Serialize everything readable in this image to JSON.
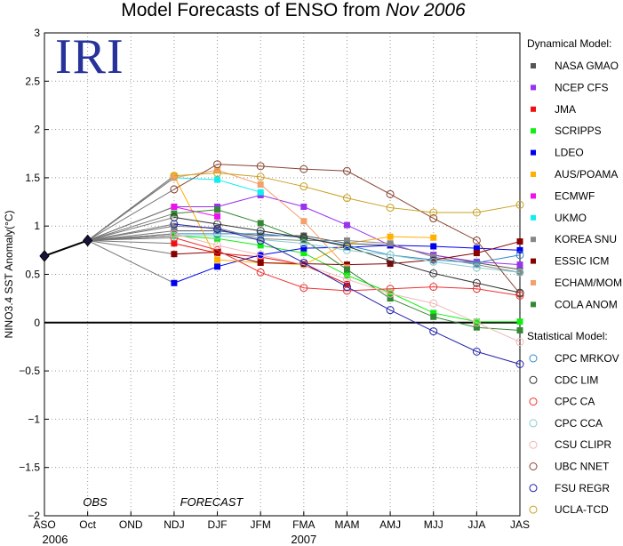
{
  "title_prefix": "Model Forecasts of ENSO from ",
  "title_date": "Nov 2006",
  "logo": "IRI",
  "labels": {
    "obs": "OBS",
    "forecast": "FORECAST",
    "year1": "2006",
    "year2": "2007"
  },
  "chart_data": {
    "type": "line",
    "title": "Model Forecasts of ENSO from Nov 2006",
    "ylabel": "NINO3.4 SST Anomaly(°C)",
    "xlabel": "",
    "categories": [
      "ASO",
      "Oct",
      "OND",
      "NDJ",
      "DJF",
      "JFM",
      "FMA",
      "MAM",
      "AMJ",
      "MJJ",
      "JJA",
      "JAS"
    ],
    "ylim": [
      -2,
      3
    ],
    "yticks": [
      "3",
      "2.5",
      "2",
      "1.5",
      "1",
      "0.5",
      "0",
      "−0.5",
      "−1",
      "−1.5",
      "−2"
    ],
    "grid": "dotted",
    "legend_position": "right",
    "observed": {
      "x": [
        "ASO",
        "Oct"
      ],
      "values": [
        0.69,
        0.85
      ]
    },
    "forecast_start": "Oct",
    "legend_headers": {
      "dynamical": "Dynamical Model:",
      "statistical": "Statistical Model:"
    },
    "series": [
      {
        "name": "NASA GMAO",
        "group": "dynamical",
        "marker": "square",
        "color": "#555555",
        "values": [
          null,
          null,
          null,
          0.95,
          0.95,
          0.9,
          0.9,
          0.82,
          0.8,
          0.7,
          0.62,
          0.55
        ]
      },
      {
        "name": "NCEP CFS",
        "group": "dynamical",
        "marker": "square",
        "color": "#9933ee",
        "values": [
          null,
          null,
          null,
          1.2,
          1.2,
          1.32,
          1.2,
          1.01,
          0.8,
          0.7,
          0.63,
          0.6
        ]
      },
      {
        "name": "JMA",
        "group": "dynamical",
        "marker": "square",
        "color": "#ee1111",
        "values": [
          null,
          null,
          null,
          0.82,
          0.72,
          0.68,
          0.6,
          0.4,
          null,
          null,
          null,
          null
        ]
      },
      {
        "name": "SCRIPPS",
        "group": "dynamical",
        "marker": "square",
        "color": "#11ee11",
        "values": [
          null,
          null,
          null,
          0.9,
          0.87,
          0.8,
          0.72,
          0.49,
          0.31,
          0.1,
          0.01,
          0.01
        ]
      },
      {
        "name": "LDEO",
        "group": "dynamical",
        "marker": "square",
        "color": "#0000ee",
        "values": [
          null,
          null,
          null,
          0.41,
          0.58,
          0.7,
          0.77,
          0.78,
          0.8,
          0.79,
          0.77,
          0.75
        ]
      },
      {
        "name": "AUS/POAMA",
        "group": "dynamical",
        "marker": "square",
        "color": "#ffb000",
        "values": [
          null,
          null,
          null,
          1.52,
          0.65,
          0.62,
          0.6,
          0.82,
          0.89,
          0.88,
          null,
          null
        ]
      },
      {
        "name": "ECMWF",
        "group": "dynamical",
        "marker": "square",
        "color": "#ee11ee",
        "values": [
          null,
          null,
          null,
          1.2,
          1.1,
          null,
          null,
          null,
          null,
          null,
          null,
          null
        ]
      },
      {
        "name": "UKMO",
        "group": "dynamical",
        "marker": "square",
        "color": "#11eeee",
        "values": [
          null,
          null,
          null,
          1.5,
          1.48,
          1.35,
          null,
          null,
          null,
          null,
          null,
          null
        ]
      },
      {
        "name": "KOREA SNU",
        "group": "dynamical",
        "marker": "square",
        "color": "#888888",
        "values": [
          null,
          null,
          null,
          1.0,
          0.98,
          0.87,
          0.85,
          0.85,
          0.82,
          0.68,
          0.6,
          0.52
        ]
      },
      {
        "name": "ESSIC ICM",
        "group": "dynamical",
        "marker": "square",
        "color": "#880000",
        "values": [
          null,
          null,
          null,
          0.71,
          0.73,
          0.62,
          0.61,
          0.6,
          0.61,
          0.65,
          0.72,
          0.84
        ]
      },
      {
        "name": "ECHAM/MOM",
        "group": "dynamical",
        "marker": "square",
        "color": "#f4a06a",
        "values": [
          null,
          null,
          null,
          1.5,
          1.58,
          1.43,
          1.05,
          0.57,
          null,
          null,
          null,
          null
        ]
      },
      {
        "name": "COLA ANOM",
        "group": "dynamical",
        "marker": "square",
        "color": "#338833",
        "values": [
          null,
          null,
          null,
          1.13,
          1.17,
          1.03,
          0.86,
          0.55,
          0.25,
          0.06,
          -0.05,
          -0.08
        ]
      },
      {
        "name": "CPC MRKOV",
        "group": "statistical",
        "marker": "circle",
        "color": "#3388cc",
        "values": [
          null,
          null,
          null,
          0.92,
          0.92,
          0.92,
          0.88,
          0.8,
          0.7,
          0.65,
          0.62,
          0.7
        ]
      },
      {
        "name": "CDC LIM",
        "group": "statistical",
        "marker": "circle",
        "color": "#333333",
        "values": [
          null,
          null,
          null,
          1.09,
          1.02,
          0.95,
          0.88,
          0.79,
          0.64,
          0.51,
          0.41,
          0.31
        ]
      },
      {
        "name": "CPC CA",
        "group": "statistical",
        "marker": "circle",
        "color": "#ee3333",
        "values": [
          null,
          null,
          null,
          0.88,
          0.75,
          0.52,
          0.36,
          0.33,
          0.35,
          0.37,
          0.35,
          0.28
        ]
      },
      {
        "name": "CPC CCA",
        "group": "statistical",
        "marker": "circle",
        "color": "#88cccc",
        "values": [
          null,
          null,
          null,
          0.9,
          0.9,
          0.86,
          0.82,
          0.75,
          0.7,
          0.63,
          0.57,
          0.52
        ]
      },
      {
        "name": "CSU CLIPR",
        "group": "statistical",
        "marker": "circle",
        "color": "#f0b8b8",
        "values": [
          null,
          null,
          null,
          0.92,
          0.8,
          0.7,
          0.6,
          0.45,
          0.3,
          0.2,
          0.0,
          -0.2
        ]
      },
      {
        "name": "UBC NNET",
        "group": "statistical",
        "marker": "circle",
        "color": "#884433",
        "values": [
          null,
          null,
          null,
          1.38,
          1.64,
          1.62,
          1.59,
          1.57,
          1.33,
          1.08,
          0.85,
          0.3
        ]
      },
      {
        "name": "FSU REGR",
        "group": "statistical",
        "marker": "circle",
        "color": "#2222aa",
        "values": [
          null,
          null,
          null,
          1.02,
          0.97,
          0.85,
          0.62,
          0.37,
          0.13,
          -0.09,
          -0.3,
          -0.43
        ]
      },
      {
        "name": "UCLA-TCD",
        "group": "statistical",
        "marker": "circle",
        "color": "#c8a020",
        "values": [
          null,
          null,
          null,
          1.52,
          1.55,
          1.51,
          1.41,
          1.29,
          1.19,
          1.14,
          1.14,
          1.22
        ]
      }
    ]
  }
}
